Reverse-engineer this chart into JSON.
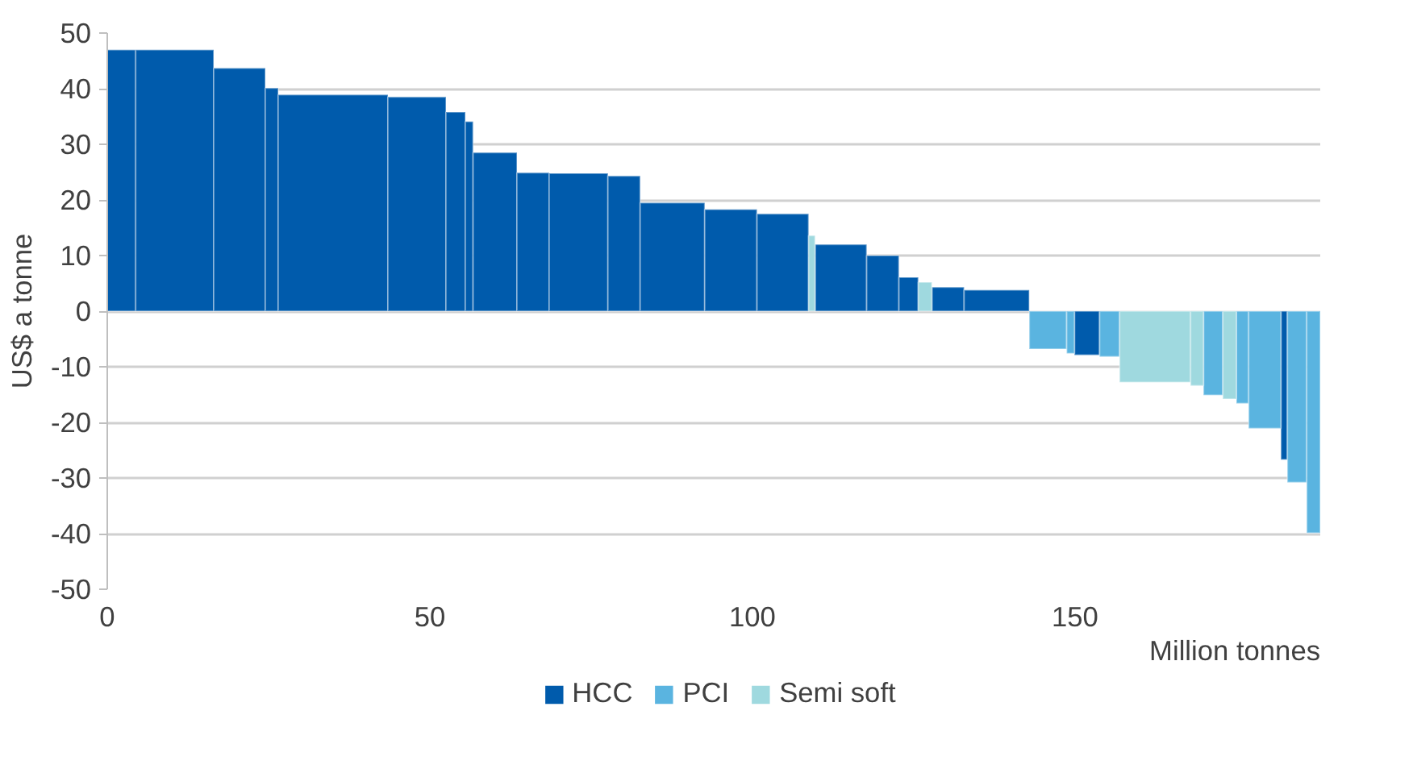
{
  "chart_data": {
    "type": "histogram",
    "ylabel": "US$ a tonne",
    "xlabel": "Million tonnes",
    "bins": [
      0,
      4.4,
      16.5,
      24.5,
      26.5,
      43.5,
      52.5,
      55.5,
      56.7,
      63.5,
      68.5,
      77.6,
      82.6,
      92.6,
      100.7,
      108.7,
      109.7,
      117.7,
      122.7,
      125.7,
      127.8,
      132.8,
      142.9,
      148.7,
      149.9,
      153.8,
      156.9,
      167.9,
      169.9,
      172.9,
      175.0,
      176.9,
      181.9,
      182.9,
      185.9,
      188.0
    ],
    "series": [
      {
        "name": "HCC",
        "color": "#005bac",
        "values": [
          47,
          47,
          43.7,
          40.1,
          38.9,
          38.5,
          35.8,
          34.1,
          28.5,
          24.9,
          24.8,
          24.3,
          19.5,
          18.3,
          17.5,
          null,
          12.0,
          10.0,
          6.1,
          null,
          4.3,
          3.8,
          null,
          null,
          -7.9,
          null,
          null,
          null,
          null,
          null,
          null,
          null,
          -26.7,
          null,
          null
        ]
      },
      {
        "name": "PCI",
        "color": "#5ab4e0",
        "values": [
          null,
          null,
          null,
          null,
          null,
          null,
          null,
          null,
          null,
          null,
          null,
          null,
          null,
          null,
          null,
          null,
          null,
          null,
          null,
          null,
          null,
          null,
          -6.8,
          -7.6,
          null,
          -8.2,
          null,
          null,
          -15.1,
          null,
          -16.6,
          -21.1,
          null,
          -30.8,
          -39.9
        ]
      },
      {
        "name": "Semi soft",
        "color": "#9fd9df",
        "values": [
          null,
          null,
          null,
          null,
          null,
          null,
          null,
          null,
          null,
          null,
          null,
          null,
          null,
          null,
          null,
          13.6,
          null,
          null,
          null,
          5.2,
          null,
          null,
          null,
          null,
          null,
          null,
          -12.8,
          -13.4,
          null,
          -15.8,
          null,
          null,
          null,
          null,
          null
        ]
      }
    ],
    "xlim": [
      0,
      188
    ],
    "xticks": [
      0,
      50,
      100,
      150
    ],
    "ylim": [
      -50,
      50
    ],
    "yticks": [
      -50,
      -40,
      -30,
      -20,
      -10,
      0,
      10,
      20,
      30,
      40,
      50
    ],
    "grid": "y",
    "legend": "bottom"
  }
}
